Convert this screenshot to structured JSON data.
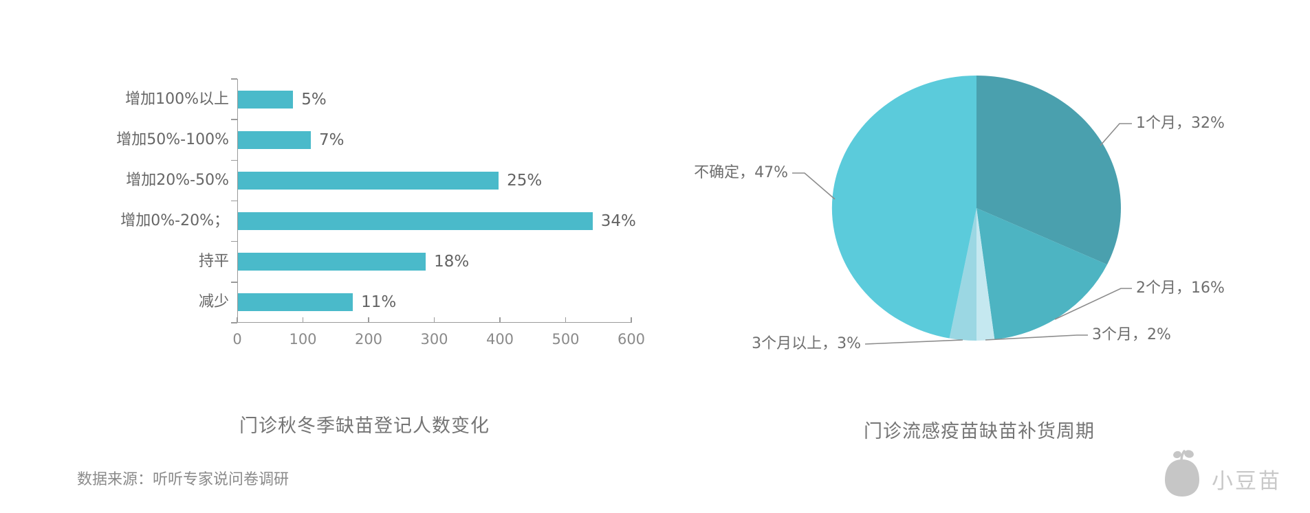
{
  "chart_data": [
    {
      "type": "bar",
      "orientation": "horizontal",
      "title": "门诊秋冬季缺苗登记人数变化",
      "categories": [
        "增加100%以上",
        "增加50%-100%",
        "增加20%-50%",
        "增加0%-20%；",
        "持平",
        "减少"
      ],
      "values": [
        84,
        111,
        397,
        540,
        286,
        175
      ],
      "value_labels": [
        "5%",
        "7%",
        "25%",
        "34%",
        "18%",
        "11%"
      ],
      "xlim": [
        0,
        600
      ],
      "x_ticks": [
        0,
        100,
        200,
        300,
        400,
        500,
        600
      ],
      "x_tick_labels": [
        "0",
        "100",
        "200",
        "300",
        "400",
        "500",
        "600"
      ],
      "bar_color": "#4ABACA",
      "axis_color": "#9a9a9a",
      "grid": false,
      "legend": "none"
    },
    {
      "type": "pie",
      "title": "门诊流感疫苗缺苗补货周期",
      "start_angle_deg": 0,
      "direction": "clockwise",
      "legend": "none",
      "labels_style": "outside-with-leader-lines",
      "slices": [
        {
          "label": "1个月",
          "pct": 32,
          "color": "#4AA0AE",
          "display": "1个月，32%"
        },
        {
          "label": "2个月",
          "pct": 16,
          "color": "#4DB4C2",
          "display": "2个月，16%"
        },
        {
          "label": "3个月",
          "pct": 2,
          "color": "#C5E8F0",
          "display": "3个月，2%"
        },
        {
          "label": "3个月以上",
          "pct": 3,
          "color": "#9BD7E3",
          "display": "3个月以上，3%"
        },
        {
          "label": "不确定",
          "pct": 47,
          "color": "#5BCBDB",
          "display": "不确定，47%"
        }
      ]
    }
  ],
  "titles": {
    "bar_chart": "门诊秋冬季缺苗登记人数变化",
    "pie_chart": "门诊流感疫苗缺苗补货周期"
  },
  "source_note": "数据来源：听听专家说问卷调研",
  "logo": {
    "text": "小豆苗",
    "icon": "sprout-bean-icon",
    "color": "#c6c6c6"
  },
  "palette": {
    "bar": "#4ABACA",
    "pie_cyan": "#5BCBDB",
    "pie_dark_teal": "#4AA0AE",
    "pie_teal": "#4DB4C2",
    "pie_pale": "#C5E8F0",
    "pie_light": "#9BD7E3",
    "axis_gray": "#9a9a9a",
    "text_gray": "#666666"
  }
}
